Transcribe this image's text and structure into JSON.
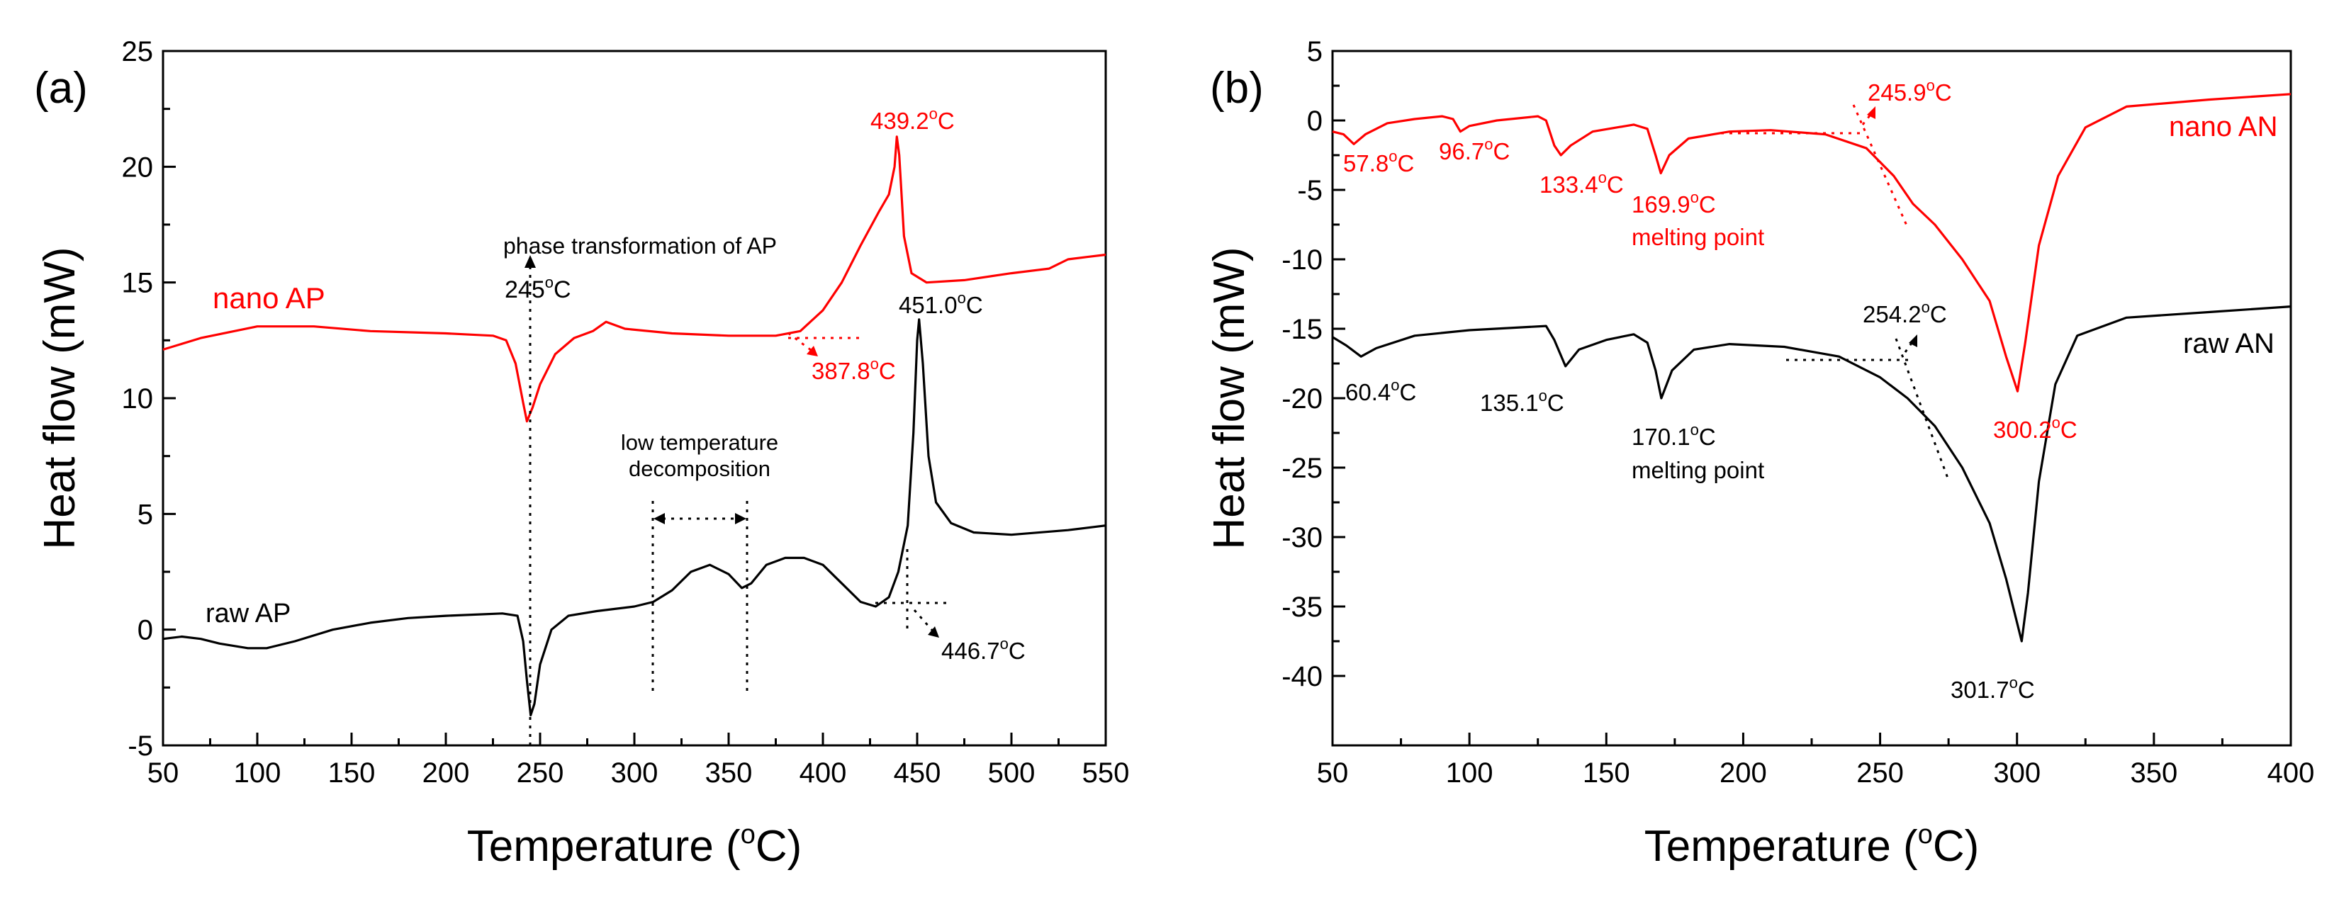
{
  "chart_data": [
    {
      "panel_label": "(a)",
      "type": "line",
      "xlabel_main": "Temperature (",
      "xlabel_deg": "o",
      "xlabel_unit": "C)",
      "ylabel": "Heat flow (mW)",
      "xlim": [
        50,
        550
      ],
      "ylim": [
        -5,
        25
      ],
      "xticks": [
        "50",
        "100",
        "150",
        "200",
        "250",
        "300",
        "350",
        "400",
        "450",
        "500",
        "550"
      ],
      "yticks": [
        "-5",
        "0",
        "5",
        "10",
        "15",
        "20",
        "25"
      ],
      "series": [
        {
          "name": "nano AP",
          "color": "#ff0000",
          "points": [
            [
              50,
              12.1
            ],
            [
              70,
              12.6
            ],
            [
              100,
              13.1
            ],
            [
              130,
              13.1
            ],
            [
              160,
              12.9
            ],
            [
              200,
              12.8
            ],
            [
              225,
              12.7
            ],
            [
              232,
              12.5
            ],
            [
              237,
              11.5
            ],
            [
              241,
              9.8
            ],
            [
              243,
              9.0
            ],
            [
              246,
              9.6
            ],
            [
              250,
              10.6
            ],
            [
              258,
              11.9
            ],
            [
              268,
              12.6
            ],
            [
              278,
              12.9
            ],
            [
              285,
              13.3
            ],
            [
              295,
              13.0
            ],
            [
              320,
              12.8
            ],
            [
              350,
              12.7
            ],
            [
              375,
              12.7
            ],
            [
              388,
              12.9
            ],
            [
              400,
              13.8
            ],
            [
              410,
              15.0
            ],
            [
              420,
              16.6
            ],
            [
              430,
              18.1
            ],
            [
              435,
              18.8
            ],
            [
              438,
              20.0
            ],
            [
              439.2,
              21.3
            ],
            [
              440.5,
              20.5
            ],
            [
              443,
              17.0
            ],
            [
              447,
              15.4
            ],
            [
              455,
              15.0
            ],
            [
              475,
              15.1
            ],
            [
              500,
              15.4
            ],
            [
              520,
              15.6
            ],
            [
              530,
              16.0
            ],
            [
              540,
              16.1
            ],
            [
              550,
              16.2
            ]
          ]
        },
        {
          "name": "raw AP",
          "color": "#000000",
          "points": [
            [
              50,
              -0.4
            ],
            [
              60,
              -0.3
            ],
            [
              70,
              -0.4
            ],
            [
              80,
              -0.6
            ],
            [
              95,
              -0.8
            ],
            [
              105,
              -0.8
            ],
            [
              120,
              -0.5
            ],
            [
              140,
              0.0
            ],
            [
              160,
              0.3
            ],
            [
              180,
              0.5
            ],
            [
              200,
              0.6
            ],
            [
              230,
              0.7
            ],
            [
              238,
              0.6
            ],
            [
              241,
              -0.5
            ],
            [
              243,
              -2.2
            ],
            [
              245,
              -3.7
            ],
            [
              247,
              -3.2
            ],
            [
              250,
              -1.5
            ],
            [
              256,
              0.0
            ],
            [
              265,
              0.6
            ],
            [
              280,
              0.8
            ],
            [
              300,
              1.0
            ],
            [
              310,
              1.2
            ],
            [
              320,
              1.7
            ],
            [
              330,
              2.5
            ],
            [
              340,
              2.8
            ],
            [
              350,
              2.4
            ],
            [
              357,
              1.8
            ],
            [
              362,
              2.0
            ],
            [
              370,
              2.8
            ],
            [
              380,
              3.1
            ],
            [
              390,
              3.1
            ],
            [
              400,
              2.8
            ],
            [
              410,
              2.0
            ],
            [
              420,
              1.2
            ],
            [
              428,
              1.0
            ],
            [
              435,
              1.4
            ],
            [
              440,
              2.5
            ],
            [
              445,
              4.5
            ],
            [
              448,
              8.5
            ],
            [
              450,
              12.5
            ],
            [
              451,
              13.4
            ],
            [
              453,
              11.5
            ],
            [
              456,
              7.5
            ],
            [
              460,
              5.5
            ],
            [
              468,
              4.6
            ],
            [
              480,
              4.2
            ],
            [
              500,
              4.1
            ],
            [
              530,
              4.3
            ],
            [
              550,
              4.5
            ]
          ]
        }
      ],
      "annotations": {
        "nano_label": "nano AP",
        "raw_label": "raw AP",
        "peak_nano_val": "439.2",
        "peak_raw_val": "451.0",
        "onset_nano_val": "387.8",
        "onset_raw_val": "446.7",
        "phase_val": "245",
        "deg": "o",
        "unit": "C",
        "phase_text": "phase transformation of AP",
        "low_temp_line1": "low temperature",
        "low_temp_line2": "decomposition"
      }
    },
    {
      "panel_label": "(b)",
      "type": "line",
      "xlabel_main": "Temperature (",
      "xlabel_deg": "o",
      "xlabel_unit": "C)",
      "ylabel": "Heat flow (mW)",
      "xlim": [
        50,
        400
      ],
      "ylim": [
        -45,
        5
      ],
      "xticks": [
        "50",
        "100",
        "150",
        "200",
        "250",
        "300",
        "350",
        "400"
      ],
      "yticks": [
        "5",
        "0",
        "-5",
        "-10",
        "-15",
        "-20",
        "-25",
        "-30",
        "-35",
        "-40"
      ],
      "series": [
        {
          "name": "nano AN",
          "color": "#ff0000",
          "points": [
            [
              50,
              -0.8
            ],
            [
              54,
              -1.0
            ],
            [
              57.8,
              -1.7
            ],
            [
              62,
              -1.0
            ],
            [
              70,
              -0.2
            ],
            [
              80,
              0.1
            ],
            [
              90,
              0.3
            ],
            [
              94,
              0.1
            ],
            [
              96.7,
              -0.8
            ],
            [
              100,
              -0.4
            ],
            [
              110,
              0.0
            ],
            [
              125,
              0.3
            ],
            [
              128,
              0.0
            ],
            [
              131,
              -1.8
            ],
            [
              133.4,
              -2.5
            ],
            [
              137,
              -1.8
            ],
            [
              145,
              -0.8
            ],
            [
              160,
              -0.3
            ],
            [
              165,
              -0.6
            ],
            [
              168,
              -2.5
            ],
            [
              169.9,
              -3.8
            ],
            [
              173,
              -2.5
            ],
            [
              180,
              -1.3
            ],
            [
              195,
              -0.8
            ],
            [
              210,
              -0.7
            ],
            [
              230,
              -1.0
            ],
            [
              245,
              -2.0
            ],
            [
              255,
              -4.0
            ],
            [
              262,
              -6.0
            ],
            [
              270,
              -7.5
            ],
            [
              280,
              -10.0
            ],
            [
              290,
              -13.0
            ],
            [
              296,
              -17.0
            ],
            [
              300.2,
              -19.5
            ],
            [
              303,
              -16.0
            ],
            [
              308,
              -9.0
            ],
            [
              315,
              -4.0
            ],
            [
              325,
              -0.5
            ],
            [
              340,
              1.0
            ],
            [
              370,
              1.5
            ],
            [
              400,
              1.9
            ]
          ]
        },
        {
          "name": "raw AN",
          "color": "#000000",
          "points": [
            [
              50,
              -15.6
            ],
            [
              55,
              -16.2
            ],
            [
              60.4,
              -17.0
            ],
            [
              66,
              -16.4
            ],
            [
              80,
              -15.5
            ],
            [
              100,
              -15.1
            ],
            [
              128,
              -14.8
            ],
            [
              131,
              -15.8
            ],
            [
              135.1,
              -17.7
            ],
            [
              140,
              -16.5
            ],
            [
              150,
              -15.8
            ],
            [
              160,
              -15.4
            ],
            [
              165,
              -16.0
            ],
            [
              168,
              -18.0
            ],
            [
              170.1,
              -20.0
            ],
            [
              174,
              -18.0
            ],
            [
              182,
              -16.5
            ],
            [
              195,
              -16.1
            ],
            [
              215,
              -16.3
            ],
            [
              235,
              -17.0
            ],
            [
              250,
              -18.5
            ],
            [
              260,
              -20.0
            ],
            [
              270,
              -22.0
            ],
            [
              280,
              -25.0
            ],
            [
              290,
              -29.0
            ],
            [
              296,
              -33.0
            ],
            [
              301.7,
              -37.5
            ],
            [
              304,
              -34.0
            ],
            [
              308,
              -26.0
            ],
            [
              314,
              -19.0
            ],
            [
              322,
              -15.5
            ],
            [
              340,
              -14.2
            ],
            [
              370,
              -13.8
            ],
            [
              400,
              -13.4
            ]
          ]
        }
      ],
      "annotations": {
        "nano_label": "nano AN",
        "raw_label": "raw AN",
        "n1": "57.8",
        "n2": "96.7",
        "n3": "133.4",
        "n4": "169.9",
        "n5": "245.9",
        "n6": "300.2",
        "r1": "60.4",
        "r2": "135.1",
        "r3": "170.1",
        "r4": "254.2",
        "r5": "301.7",
        "deg": "o",
        "unit": "C",
        "melting": "melting point"
      }
    }
  ]
}
